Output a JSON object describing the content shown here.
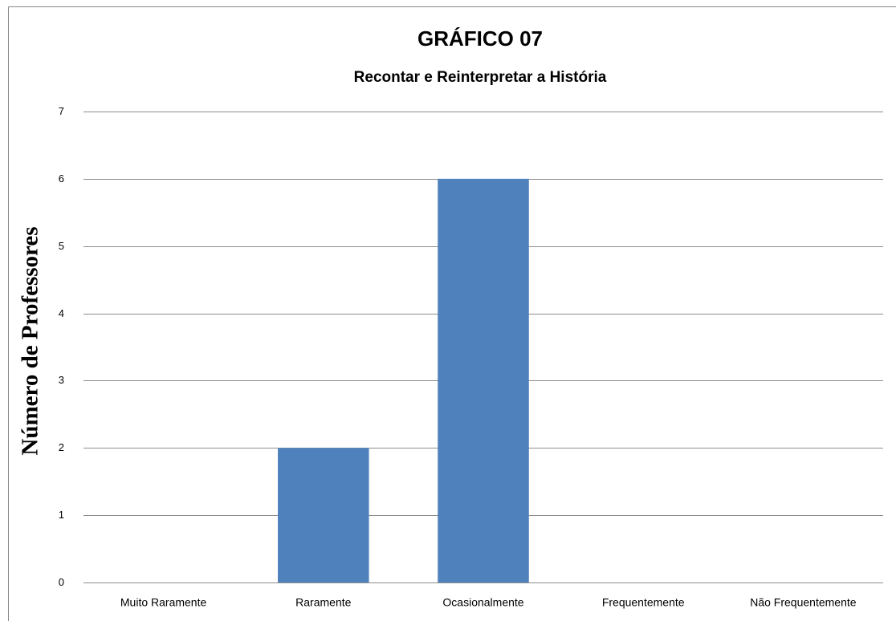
{
  "chart_data": {
    "type": "bar",
    "title": "GRÁFICO 07",
    "subtitle": "Recontar e Reinterpretar a História",
    "y_label": "Número de Professores",
    "categories": [
      "Muito Raramente",
      "Raramente",
      "Ocasionalmente",
      "Frequentemente",
      "Não Frequentemente"
    ],
    "values": [
      0,
      2,
      6,
      0,
      0
    ],
    "color": "#4f81bd",
    "ylim": [
      0,
      7
    ],
    "yticks": [
      0,
      1,
      2,
      3,
      4,
      5,
      6,
      7
    ],
    "grid": true
  }
}
